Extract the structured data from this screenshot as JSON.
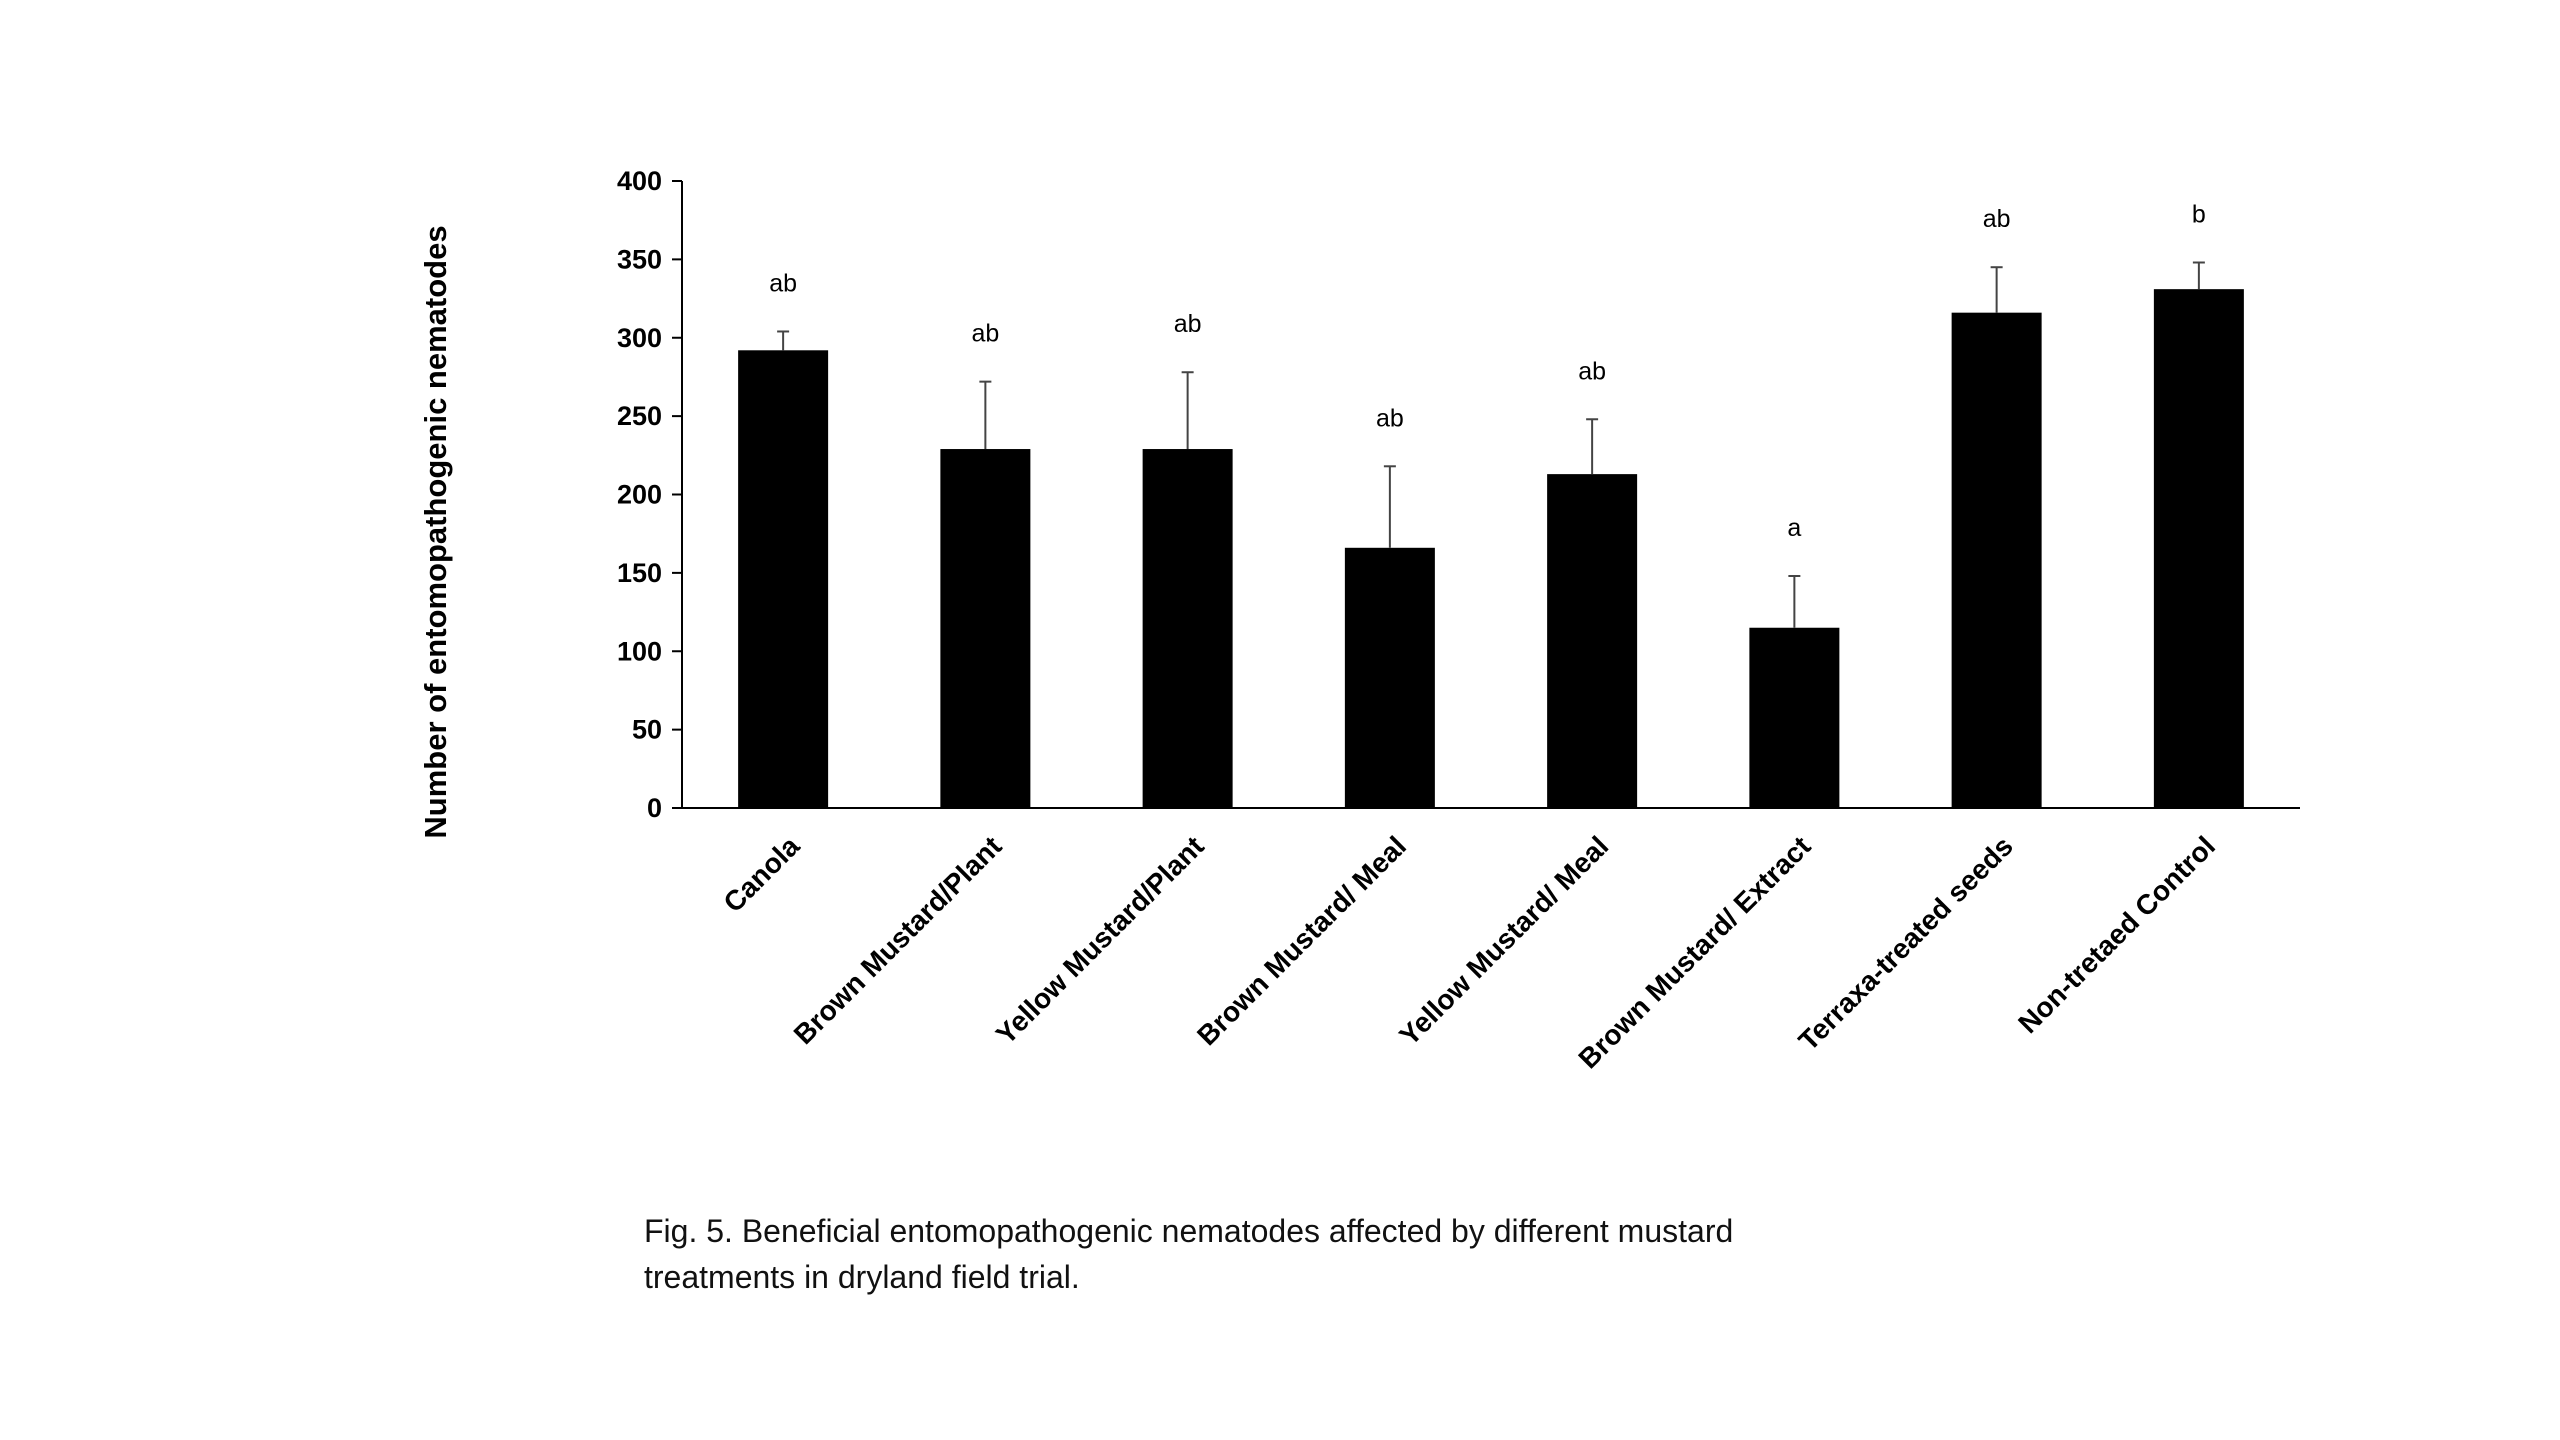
{
  "chart_data": {
    "type": "bar",
    "title": "",
    "xlabel": "",
    "ylabel": "Number of entomopathogenic nematodes",
    "ylim": [
      0,
      400
    ],
    "yticks": [
      0,
      50,
      100,
      150,
      200,
      250,
      300,
      350,
      400
    ],
    "grid": false,
    "legend": "none",
    "bar_color": "#000000",
    "categories": [
      "Canola",
      "Brown Mustard/Plant",
      "Yellow Mustard/Plant",
      "Brown Mustard/ Meal",
      "Yellow Mustard/ Meal",
      "Brown Mustard/ Extract",
      "Terraxa-treated seeds",
      "Non-tretaed Control"
    ],
    "values": [
      292,
      229,
      229,
      166,
      213,
      115,
      316,
      331
    ],
    "error_upper": [
      304,
      272,
      278,
      218,
      248,
      148,
      345,
      348
    ],
    "significance": [
      "ab",
      "ab",
      "ab",
      "ab",
      "ab",
      "a",
      "ab",
      "b"
    ]
  },
  "caption": {
    "line1": "Fig. 5. Beneficial entomopathogenic nematodes affected by different mustard",
    "line2": "treatments in dryland field trial."
  }
}
